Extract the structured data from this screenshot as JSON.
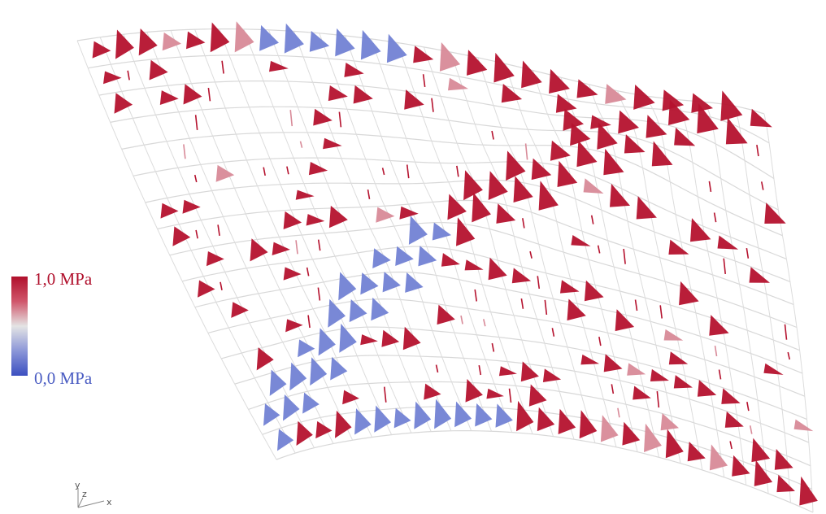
{
  "legend": {
    "max_label": "1,0 MPa",
    "min_label": "0,0 MPa"
  },
  "axes": {
    "y": "y",
    "z": "z",
    "x": "x"
  }
}
